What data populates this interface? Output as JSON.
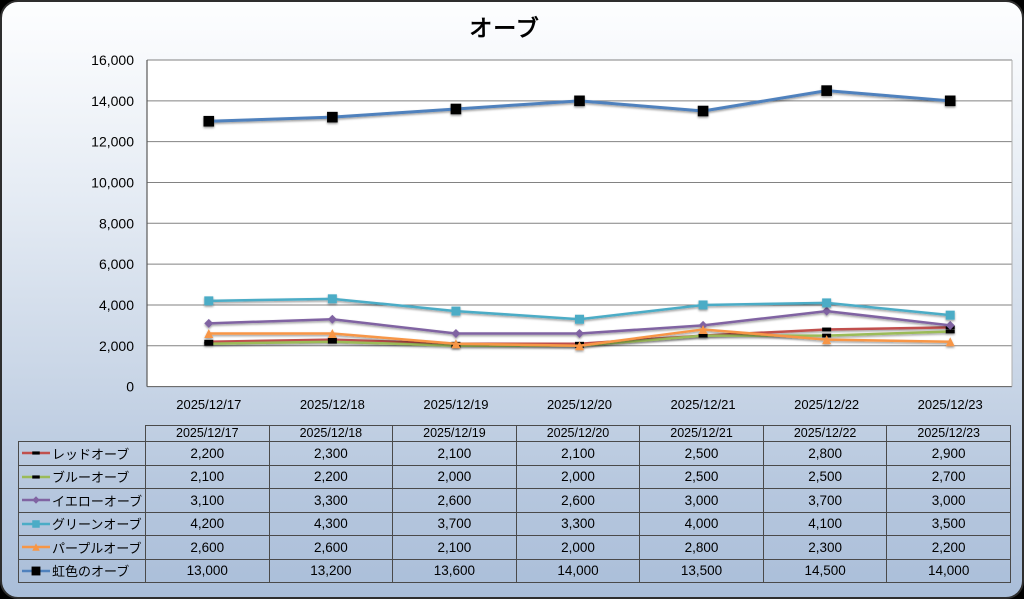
{
  "chart_data": {
    "type": "line",
    "title": "オーブ",
    "categories": [
      "2025/12/17",
      "2025/12/18",
      "2025/12/19",
      "2025/12/20",
      "2025/12/21",
      "2025/12/22",
      "2025/12/23"
    ],
    "yticks": [
      "0",
      "2,000",
      "4,000",
      "6,000",
      "8,000",
      "10,000",
      "12,000",
      "14,000",
      "16,000"
    ],
    "ylim": [
      0,
      16000
    ],
    "ytick_step": 2000,
    "grid": true,
    "legend_position": "data-table-left",
    "series": [
      {
        "name": "レッドオーブ",
        "color": "#C0504D",
        "marker": "dash",
        "marker_color": "#000000",
        "values": [
          2200,
          2300,
          2100,
          2100,
          2500,
          2800,
          2900
        ],
        "cells": [
          "2,200",
          "2,300",
          "2,100",
          "2,100",
          "2,500",
          "2,800",
          "2,900"
        ]
      },
      {
        "name": "ブルーオーブ",
        "color": "#9BBB59",
        "marker": "dash",
        "marker_color": "#000000",
        "values": [
          2100,
          2200,
          2000,
          2000,
          2500,
          2500,
          2700
        ],
        "cells": [
          "2,100",
          "2,200",
          "2,000",
          "2,000",
          "2,500",
          "2,500",
          "2,700"
        ]
      },
      {
        "name": "イエローオーブ",
        "color": "#8064A2",
        "marker": "diamond",
        "marker_color": "#8064A2",
        "values": [
          3100,
          3300,
          2600,
          2600,
          3000,
          3700,
          3000
        ],
        "cells": [
          "3,100",
          "3,300",
          "2,600",
          "2,600",
          "3,000",
          "3,700",
          "3,000"
        ]
      },
      {
        "name": "グリーンオーブ",
        "color": "#4BACC6",
        "marker": "square",
        "marker_color": "#4BACC6",
        "values": [
          4200,
          4300,
          3700,
          3300,
          4000,
          4100,
          3500
        ],
        "cells": [
          "4,200",
          "4,300",
          "3,700",
          "3,300",
          "4,000",
          "4,100",
          "3,500"
        ]
      },
      {
        "name": "パープルオーブ",
        "color": "#F79646",
        "marker": "triangle",
        "marker_color": "#F79646",
        "values": [
          2600,
          2600,
          2100,
          2000,
          2800,
          2300,
          2200
        ],
        "cells": [
          "2,600",
          "2,600",
          "2,100",
          "2,000",
          "2,800",
          "2,300",
          "2,200"
        ]
      },
      {
        "name": "虹色のオーブ",
        "color": "#4F81BD",
        "marker": "big-square",
        "marker_color": "#000000",
        "values": [
          13000,
          13200,
          13600,
          14000,
          13500,
          14500,
          14000
        ],
        "cells": [
          "13,000",
          "13,200",
          "13,600",
          "14,000",
          "13,500",
          "14,500",
          "14,000"
        ]
      }
    ]
  }
}
